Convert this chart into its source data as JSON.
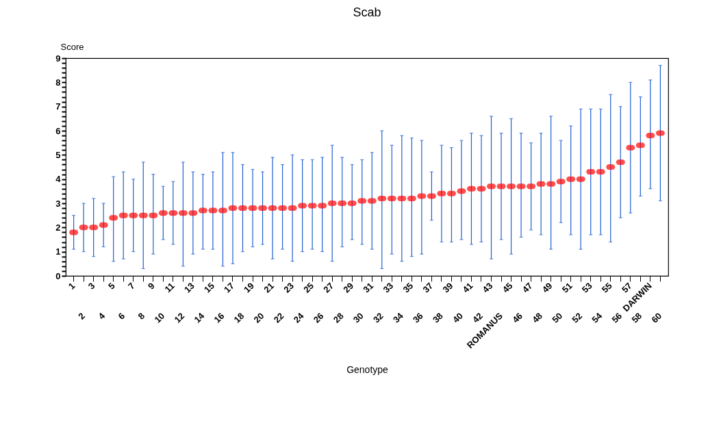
{
  "chart_data": {
    "type": "scatter",
    "title": "Scab",
    "xlabel": "Genotype",
    "ylabel": "Score",
    "marker": "square",
    "color": "#ff0000",
    "grid": false,
    "categories": [
      "1",
      "2",
      "3",
      "4",
      "5",
      "6",
      "7",
      "8",
      "9",
      "10",
      "11",
      "12",
      "13",
      "14",
      "15",
      "16",
      "17",
      "18",
      "19",
      "20",
      "21",
      "22",
      "23",
      "24",
      "25",
      "26",
      "27",
      "28",
      "29",
      "30",
      "31",
      "32",
      "33",
      "34",
      "35",
      "36",
      "37",
      "38",
      "39",
      "40",
      "41",
      "42",
      "43",
      "ROMANUS",
      "45",
      "46",
      "47",
      "48",
      "49",
      "50",
      "51",
      "52",
      "53",
      "54",
      "55",
      "56",
      "57",
      "58",
      "DARWIN",
      "60"
    ],
    "values": [
      1.8,
      2.0,
      2.0,
      2.1,
      2.4,
      2.5,
      2.5,
      2.5,
      2.5,
      2.6,
      2.6,
      2.6,
      2.6,
      2.7,
      2.7,
      2.7,
      2.8,
      2.8,
      2.8,
      2.8,
      2.8,
      2.8,
      2.8,
      2.9,
      2.9,
      2.9,
      3.0,
      3.0,
      3.0,
      3.1,
      3.1,
      3.2,
      3.2,
      3.2,
      3.2,
      3.3,
      3.3,
      3.4,
      3.4,
      3.5,
      3.6,
      3.6,
      3.7,
      3.7,
      3.7,
      3.7,
      3.7,
      3.8,
      3.8,
      3.9,
      4.0,
      4.0,
      4.3,
      4.3,
      4.5,
      4.7,
      5.3,
      5.4,
      5.8,
      5.9
    ],
    "errors": [
      [
        1.1,
        2.5
      ],
      [
        1.0,
        3.0
      ],
      [
        0.8,
        3.2
      ],
      [
        1.2,
        3.0
      ],
      [
        0.6,
        4.1
      ],
      [
        0.7,
        4.3
      ],
      [
        1.0,
        4.0
      ],
      [
        0.3,
        4.7
      ],
      [
        0.9,
        4.2
      ],
      [
        1.5,
        3.7
      ],
      [
        1.3,
        3.9
      ],
      [
        0.4,
        4.7
      ],
      [
        0.9,
        4.3
      ],
      [
        1.1,
        4.2
      ],
      [
        1.1,
        4.3
      ],
      [
        0.4,
        5.1
      ],
      [
        0.5,
        5.1
      ],
      [
        1.0,
        4.6
      ],
      [
        1.2,
        4.4
      ],
      [
        1.3,
        4.3
      ],
      [
        0.7,
        4.9
      ],
      [
        1.1,
        4.6
      ],
      [
        0.6,
        5.0
      ],
      [
        1.0,
        4.8
      ],
      [
        1.1,
        4.8
      ],
      [
        1.0,
        4.9
      ],
      [
        0.6,
        5.4
      ],
      [
        1.2,
        4.9
      ],
      [
        1.5,
        4.6
      ],
      [
        1.3,
        4.8
      ],
      [
        1.1,
        5.1
      ],
      [
        0.3,
        6.0
      ],
      [
        0.9,
        5.4
      ],
      [
        0.6,
        5.8
      ],
      [
        0.8,
        5.7
      ],
      [
        0.9,
        5.6
      ],
      [
        2.3,
        4.3
      ],
      [
        1.4,
        5.4
      ],
      [
        1.4,
        5.3
      ],
      [
        1.5,
        5.6
      ],
      [
        1.3,
        5.9
      ],
      [
        1.4,
        5.8
      ],
      [
        0.7,
        6.6
      ],
      [
        1.5,
        5.9
      ],
      [
        0.9,
        6.5
      ],
      [
        1.6,
        5.9
      ],
      [
        1.9,
        5.5
      ],
      [
        1.7,
        5.9
      ],
      [
        1.1,
        6.6
      ],
      [
        2.2,
        5.6
      ],
      [
        1.7,
        6.2
      ],
      [
        1.1,
        6.9
      ],
      [
        1.7,
        6.9
      ],
      [
        1.7,
        6.9
      ],
      [
        1.4,
        7.5
      ],
      [
        2.4,
        7.0
      ],
      [
        2.6,
        8.0
      ],
      [
        3.3,
        7.4
      ],
      [
        3.6,
        8.1
      ],
      [
        3.1,
        8.7
      ]
    ],
    "ylim": [
      0,
      9
    ],
    "yticks": [
      0,
      {
        "value": 0.2,
        "label": null
      },
      {
        "value": 0.4,
        "label": null
      },
      {
        "value": 0.6,
        "label": null
      },
      {
        "value": 0.8,
        "label": null
      },
      1,
      {
        "value": 1.2,
        "label": null
      },
      {
        "value": 1.4,
        "label": null
      },
      {
        "value": 1.6,
        "label": null
      },
      {
        "value": 1.8,
        "label": null
      },
      2,
      {
        "value": 2.2,
        "label": null
      },
      {
        "value": 2.4,
        "label": null
      },
      {
        "value": 2.6,
        "label": null
      },
      {
        "value": 2.8,
        "label": null
      },
      3,
      {
        "value": 3.2,
        "label": null
      },
      {
        "value": 3.4,
        "label": null
      },
      {
        "value": 3.6,
        "label": null
      },
      {
        "value": 3.8,
        "label": null
      },
      4,
      {
        "value": 4.2,
        "label": null
      },
      {
        "value": 4.4,
        "label": null
      },
      {
        "value": 4.6,
        "label": null
      },
      {
        "value": 4.8,
        "label": null
      },
      5,
      {
        "value": 5.2,
        "label": null
      },
      {
        "value": 5.4,
        "label": null
      },
      {
        "value": 5.6,
        "label": null
      },
      {
        "value": 5.8,
        "label": null
      },
      6,
      {
        "value": 6.2,
        "label": null
      },
      {
        "value": 6.4,
        "label": null
      },
      {
        "value": 6.6,
        "label": null
      },
      {
        "value": 6.8,
        "label": null
      },
      7,
      {
        "value": 7.2,
        "label": null
      },
      {
        "value": 7.4,
        "label": null
      },
      {
        "value": 7.6,
        "label": null
      },
      {
        "value": 7.8,
        "label": null
      },
      8,
      {
        "value": 8.2,
        "label": null
      },
      {
        "value": 8.4,
        "label": null
      },
      {
        "value": 8.6,
        "label": null
      },
      {
        "value": 8.8,
        "label": null
      },
      9
    ]
  }
}
